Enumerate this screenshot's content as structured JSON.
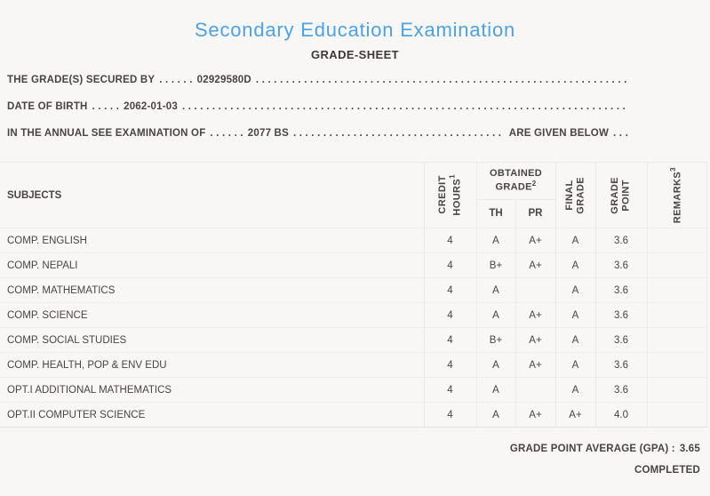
{
  "header": {
    "title": "Secondary Education Examination",
    "subtitle": "GRADE-SHEET"
  },
  "info": {
    "line1": {
      "label": "THE GRADE(S) SECURED BY",
      "lead_dots": ". . . . . .",
      "value": "02929580D",
      "fill_dots": ". . . . . . . . . . . . . . . . . . . . . . . . . . . . . . . . . . . . . . . . . . . . . . . . . . . . . . . . . . . . . . . . . . . . . . . . . . . . . . . ."
    },
    "line2": {
      "label": "DATE OF BIRTH",
      "lead_dots": ". . . . .",
      "value": "2062-01-03",
      "fill_dots": ". . . . . . . . . . . . . . . . . . . . . . . . . . . . . . . . . . . . . . . . . . . . . . . . . . . . . . . . . . . . . . . . . . . . . . . . . . . . . . . ."
    },
    "line3": {
      "label": "IN THE ANNUAL SEE EXAMINATION OF",
      "lead_dots": ". . . . . .",
      "value": "2077 BS",
      "fill_dots": ". . . . . . . . . . . . . . . . . . . . . . . . . . . . . . . . . . . . . . . . . . . . . . . . . . . . . . . . . . . . . . . . . . . . . . . . . . . . . . . .",
      "suffix": "ARE GIVEN BELOW",
      "end_dots": ". . ."
    }
  },
  "table": {
    "headers": {
      "subjects": "SUBJECTS",
      "credit_l1": "CREDIT",
      "credit_l2": "HOURS",
      "credit_sup": "1",
      "obtained_l1": "OBTAINED",
      "obtained_l2": "GRADE",
      "obtained_sup": "2",
      "th": "TH",
      "pr": "PR",
      "final_l1": "FINAL",
      "final_l2": "GRADE",
      "gp_l1": "GRADE",
      "gp_l2": "POINT",
      "remarks": "REMARKS",
      "remarks_sup": "3"
    },
    "rows": [
      {
        "subject": "COMP. ENGLISH",
        "credit": "4",
        "th": "A",
        "pr": "A+",
        "final": "A",
        "gp": "3.6",
        "remarks": ""
      },
      {
        "subject": "COMP. NEPALI",
        "credit": "4",
        "th": "B+",
        "pr": "A+",
        "final": "A",
        "gp": "3.6",
        "remarks": ""
      },
      {
        "subject": "COMP. MATHEMATICS",
        "credit": "4",
        "th": "A",
        "pr": "",
        "final": "A",
        "gp": "3.6",
        "remarks": ""
      },
      {
        "subject": "COMP. SCIENCE",
        "credit": "4",
        "th": "A",
        "pr": "A+",
        "final": "A",
        "gp": "3.6",
        "remarks": ""
      },
      {
        "subject": "COMP. SOCIAL STUDIES",
        "credit": "4",
        "th": "B+",
        "pr": "A+",
        "final": "A",
        "gp": "3.6",
        "remarks": ""
      },
      {
        "subject": "COMP. HEALTH, POP & ENV EDU",
        "credit": "4",
        "th": "A",
        "pr": "A+",
        "final": "A",
        "gp": "3.6",
        "remarks": ""
      },
      {
        "subject": "OPT.I ADDITIONAL MATHEMATICS",
        "credit": "4",
        "th": "A",
        "pr": "",
        "final": "A",
        "gp": "3.6",
        "remarks": ""
      },
      {
        "subject": "OPT.II COMPUTER SCIENCE",
        "credit": "4",
        "th": "A",
        "pr": "A+",
        "final": "A+",
        "gp": "4.0",
        "remarks": ""
      }
    ]
  },
  "footer": {
    "gpa_label": "GRADE POINT AVERAGE (GPA) :",
    "gpa_value": "3.65",
    "status": "COMPLETED"
  },
  "colors": {
    "accent_blue": "#4ba2e4",
    "text_dark": "#4a4444",
    "heading_dark": "#3e3838",
    "border_light": "#eceae7",
    "background": "#f8f7f5"
  }
}
